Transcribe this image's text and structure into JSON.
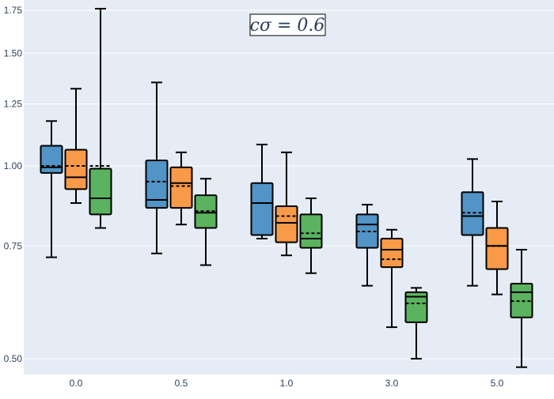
{
  "chart_data": {
    "type": "box",
    "title": "c_σ = 0.6",
    "title_display": "𝑐𝜎 = 0.6",
    "yscale": "log",
    "ylim": [
      0.485,
      1.76
    ],
    "yticks": [
      0.5,
      0.75,
      1.0,
      1.25,
      1.5,
      1.75
    ],
    "ytick_labels": [
      "0.50",
      "0.75",
      "1.00",
      "1.25",
      "1.50",
      "1.75"
    ],
    "categories": [
      "0.0",
      "0.5",
      "1.0",
      "3.0",
      "5.0"
    ],
    "series": [
      {
        "name": "series-1",
        "color": "#1f77b4",
        "fill": "rgba(31,119,180,0.75)",
        "boxes": [
          {
            "min": 0.72,
            "q1": 0.975,
            "median": 0.995,
            "mean": 1.0,
            "q3": 1.075,
            "max": 1.175
          },
          {
            "min": 0.73,
            "q1": 0.86,
            "median": 0.885,
            "mean": 0.945,
            "q3": 1.02,
            "max": 1.35
          },
          {
            "min": 0.77,
            "q1": 0.78,
            "median": 0.875,
            "mean": 0.875,
            "q3": 0.94,
            "max": 1.08
          },
          {
            "min": 0.65,
            "q1": 0.745,
            "median": 0.81,
            "mean": 0.79,
            "q3": 0.84,
            "max": 0.87
          },
          {
            "min": 0.65,
            "q1": 0.78,
            "median": 0.835,
            "mean": 0.845,
            "q3": 0.91,
            "max": 1.025
          }
        ]
      },
      {
        "name": "series-2",
        "color": "#ff7f0e",
        "fill": "rgba(255,127,14,0.75)",
        "boxes": [
          {
            "min": 0.875,
            "q1": 0.92,
            "median": 0.96,
            "mean": 1.0,
            "q3": 1.06,
            "max": 1.32
          },
          {
            "min": 0.81,
            "q1": 0.86,
            "median": 0.94,
            "mean": 0.93,
            "q3": 0.995,
            "max": 1.05
          },
          {
            "min": 0.725,
            "q1": 0.76,
            "median": 0.815,
            "mean": 0.835,
            "q3": 0.865,
            "max": 1.05
          },
          {
            "min": 0.56,
            "q1": 0.695,
            "median": 0.74,
            "mean": 0.715,
            "q3": 0.77,
            "max": 0.795
          },
          {
            "min": 0.63,
            "q1": 0.69,
            "median": 0.75,
            "mean": 0.75,
            "q3": 0.8,
            "max": 0.88
          }
        ]
      },
      {
        "name": "series-3",
        "color": "#2ca02c",
        "fill": "rgba(44,160,44,0.75)",
        "boxes": [
          {
            "min": 0.8,
            "q1": 0.84,
            "median": 0.89,
            "mean": 1.0,
            "q3": 0.99,
            "max": 1.76
          },
          {
            "min": 0.7,
            "q1": 0.8,
            "median": 0.845,
            "mean": 0.85,
            "q3": 0.9,
            "max": 0.955
          },
          {
            "min": 0.68,
            "q1": 0.745,
            "median": 0.77,
            "mean": 0.785,
            "q3": 0.84,
            "max": 0.89
          },
          {
            "min": 0.5,
            "q1": 0.57,
            "median": 0.625,
            "mean": 0.61,
            "q3": 0.635,
            "max": 0.645
          },
          {
            "min": 0.485,
            "q1": 0.58,
            "median": 0.635,
            "mean": 0.615,
            "q3": 0.655,
            "max": 0.74
          }
        ]
      }
    ]
  }
}
